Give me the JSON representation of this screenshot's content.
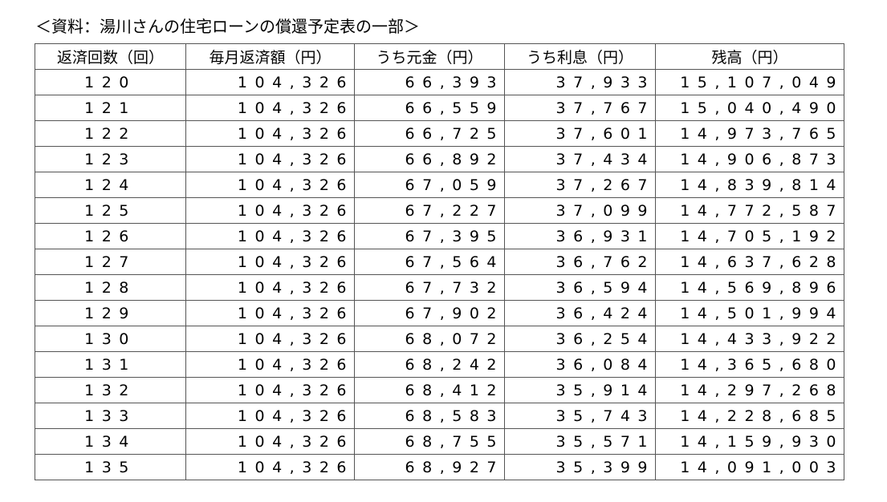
{
  "caption": "＜資料：湯川さんの住宅ローンの償還予定表の一部＞",
  "table": {
    "headers": [
      "返済回数（回）",
      "毎月返済額（円）",
      "うち元金（円）",
      "うち利息（円）",
      "残高（円）"
    ],
    "rows": [
      [
        "120",
        "104,326",
        "66,393",
        "37,933",
        "15,107,049"
      ],
      [
        "121",
        "104,326",
        "66,559",
        "37,767",
        "15,040,490"
      ],
      [
        "122",
        "104,326",
        "66,725",
        "37,601",
        "14,973,765"
      ],
      [
        "123",
        "104,326",
        "66,892",
        "37,434",
        "14,906,873"
      ],
      [
        "124",
        "104,326",
        "67,059",
        "37,267",
        "14,839,814"
      ],
      [
        "125",
        "104,326",
        "67,227",
        "37,099",
        "14,772,587"
      ],
      [
        "126",
        "104,326",
        "67,395",
        "36,931",
        "14,705,192"
      ],
      [
        "127",
        "104,326",
        "67,564",
        "36,762",
        "14,637,628"
      ],
      [
        "128",
        "104,326",
        "67,732",
        "36,594",
        "14,569,896"
      ],
      [
        "129",
        "104,326",
        "67,902",
        "36,424",
        "14,501,994"
      ],
      [
        "130",
        "104,326",
        "68,072",
        "36,254",
        "14,433,922"
      ],
      [
        "131",
        "104,326",
        "68,242",
        "36,084",
        "14,365,680"
      ],
      [
        "132",
        "104,326",
        "68,412",
        "35,914",
        "14,297,268"
      ],
      [
        "133",
        "104,326",
        "68,583",
        "35,743",
        "14,228,685"
      ],
      [
        "134",
        "104,326",
        "68,755",
        "35,571",
        "14,159,930"
      ],
      [
        "135",
        "104,326",
        "68,927",
        "35,399",
        "14,091,003"
      ]
    ]
  }
}
